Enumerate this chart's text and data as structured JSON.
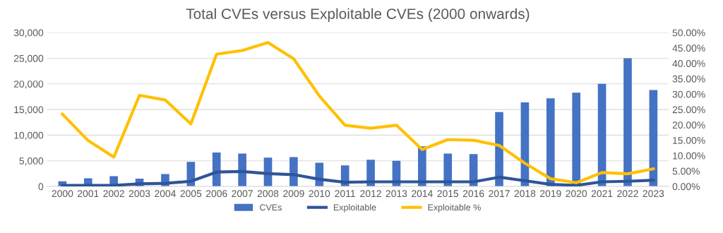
{
  "chart_data": {
    "type": "bar",
    "title": "Total CVEs versus Exploitable CVEs (2000 onwards)",
    "categories": [
      "2000",
      "2001",
      "2002",
      "2003",
      "2004",
      "2005",
      "2006",
      "2007",
      "2008",
      "2009",
      "2010",
      "2011",
      "2012",
      "2013",
      "2014",
      "2015",
      "2016",
      "2017",
      "2018",
      "2019",
      "2020",
      "2021",
      "2022",
      "2023"
    ],
    "series": [
      {
        "name": "CVEs",
        "color": "#4472c4",
        "values": [
          1000,
          1600,
          2000,
          1500,
          2400,
          4800,
          6600,
          6400,
          5600,
          5700,
          4600,
          4100,
          5200,
          5000,
          7800,
          6400,
          6300,
          14500,
          16400,
          17200,
          18300,
          20000,
          25000,
          18800
        ]
      },
      {
        "name": "Exploitable",
        "type": "line",
        "color": "#2f5597",
        "values": [
          200,
          200,
          200,
          500,
          600,
          1000,
          2800,
          2900,
          2500,
          2300,
          1400,
          800,
          900,
          900,
          900,
          900,
          900,
          1800,
          1100,
          400,
          200,
          900,
          1000,
          1200
        ]
      },
      {
        "name": "Exploitable %",
        "type": "line",
        "axis": "y2",
        "color": "#ffc000",
        "values": [
          23.5,
          14.9,
          9.5,
          29.6,
          28.1,
          20.3,
          43.0,
          44.2,
          46.8,
          41.5,
          29.4,
          19.9,
          18.9,
          19.9,
          12.0,
          15.2,
          15.0,
          13.3,
          7.5,
          2.5,
          1.2,
          4.5,
          4.1,
          5.7
        ]
      }
    ],
    "ylim": [
      0,
      30000
    ],
    "yticks": [
      {
        "value": 0,
        "label": "0"
      },
      {
        "value": 5000,
        "label": "5,000"
      },
      {
        "value": 10000,
        "label": "10,000"
      },
      {
        "value": 15000,
        "label": "15,000"
      },
      {
        "value": 20000,
        "label": "20,000"
      },
      {
        "value": 25000,
        "label": "25,000"
      },
      {
        "value": 30000,
        "label": "30,000"
      }
    ],
    "y2lim": [
      0,
      50
    ],
    "y2ticks": [
      {
        "value": 0,
        "label": "0.00%"
      },
      {
        "value": 5,
        "label": "5.00%"
      },
      {
        "value": 10,
        "label": "10.00%"
      },
      {
        "value": 15,
        "label": "15.00%"
      },
      {
        "value": 20,
        "label": "20.00%"
      },
      {
        "value": 25,
        "label": "25.00%"
      },
      {
        "value": 30,
        "label": "30.00%"
      },
      {
        "value": 35,
        "label": "35.00%"
      },
      {
        "value": 40,
        "label": "40.00%"
      },
      {
        "value": 45,
        "label": "45.00%"
      },
      {
        "value": 50,
        "label": "50.00%"
      }
    ],
    "grid": "y",
    "legend": "bottom"
  }
}
